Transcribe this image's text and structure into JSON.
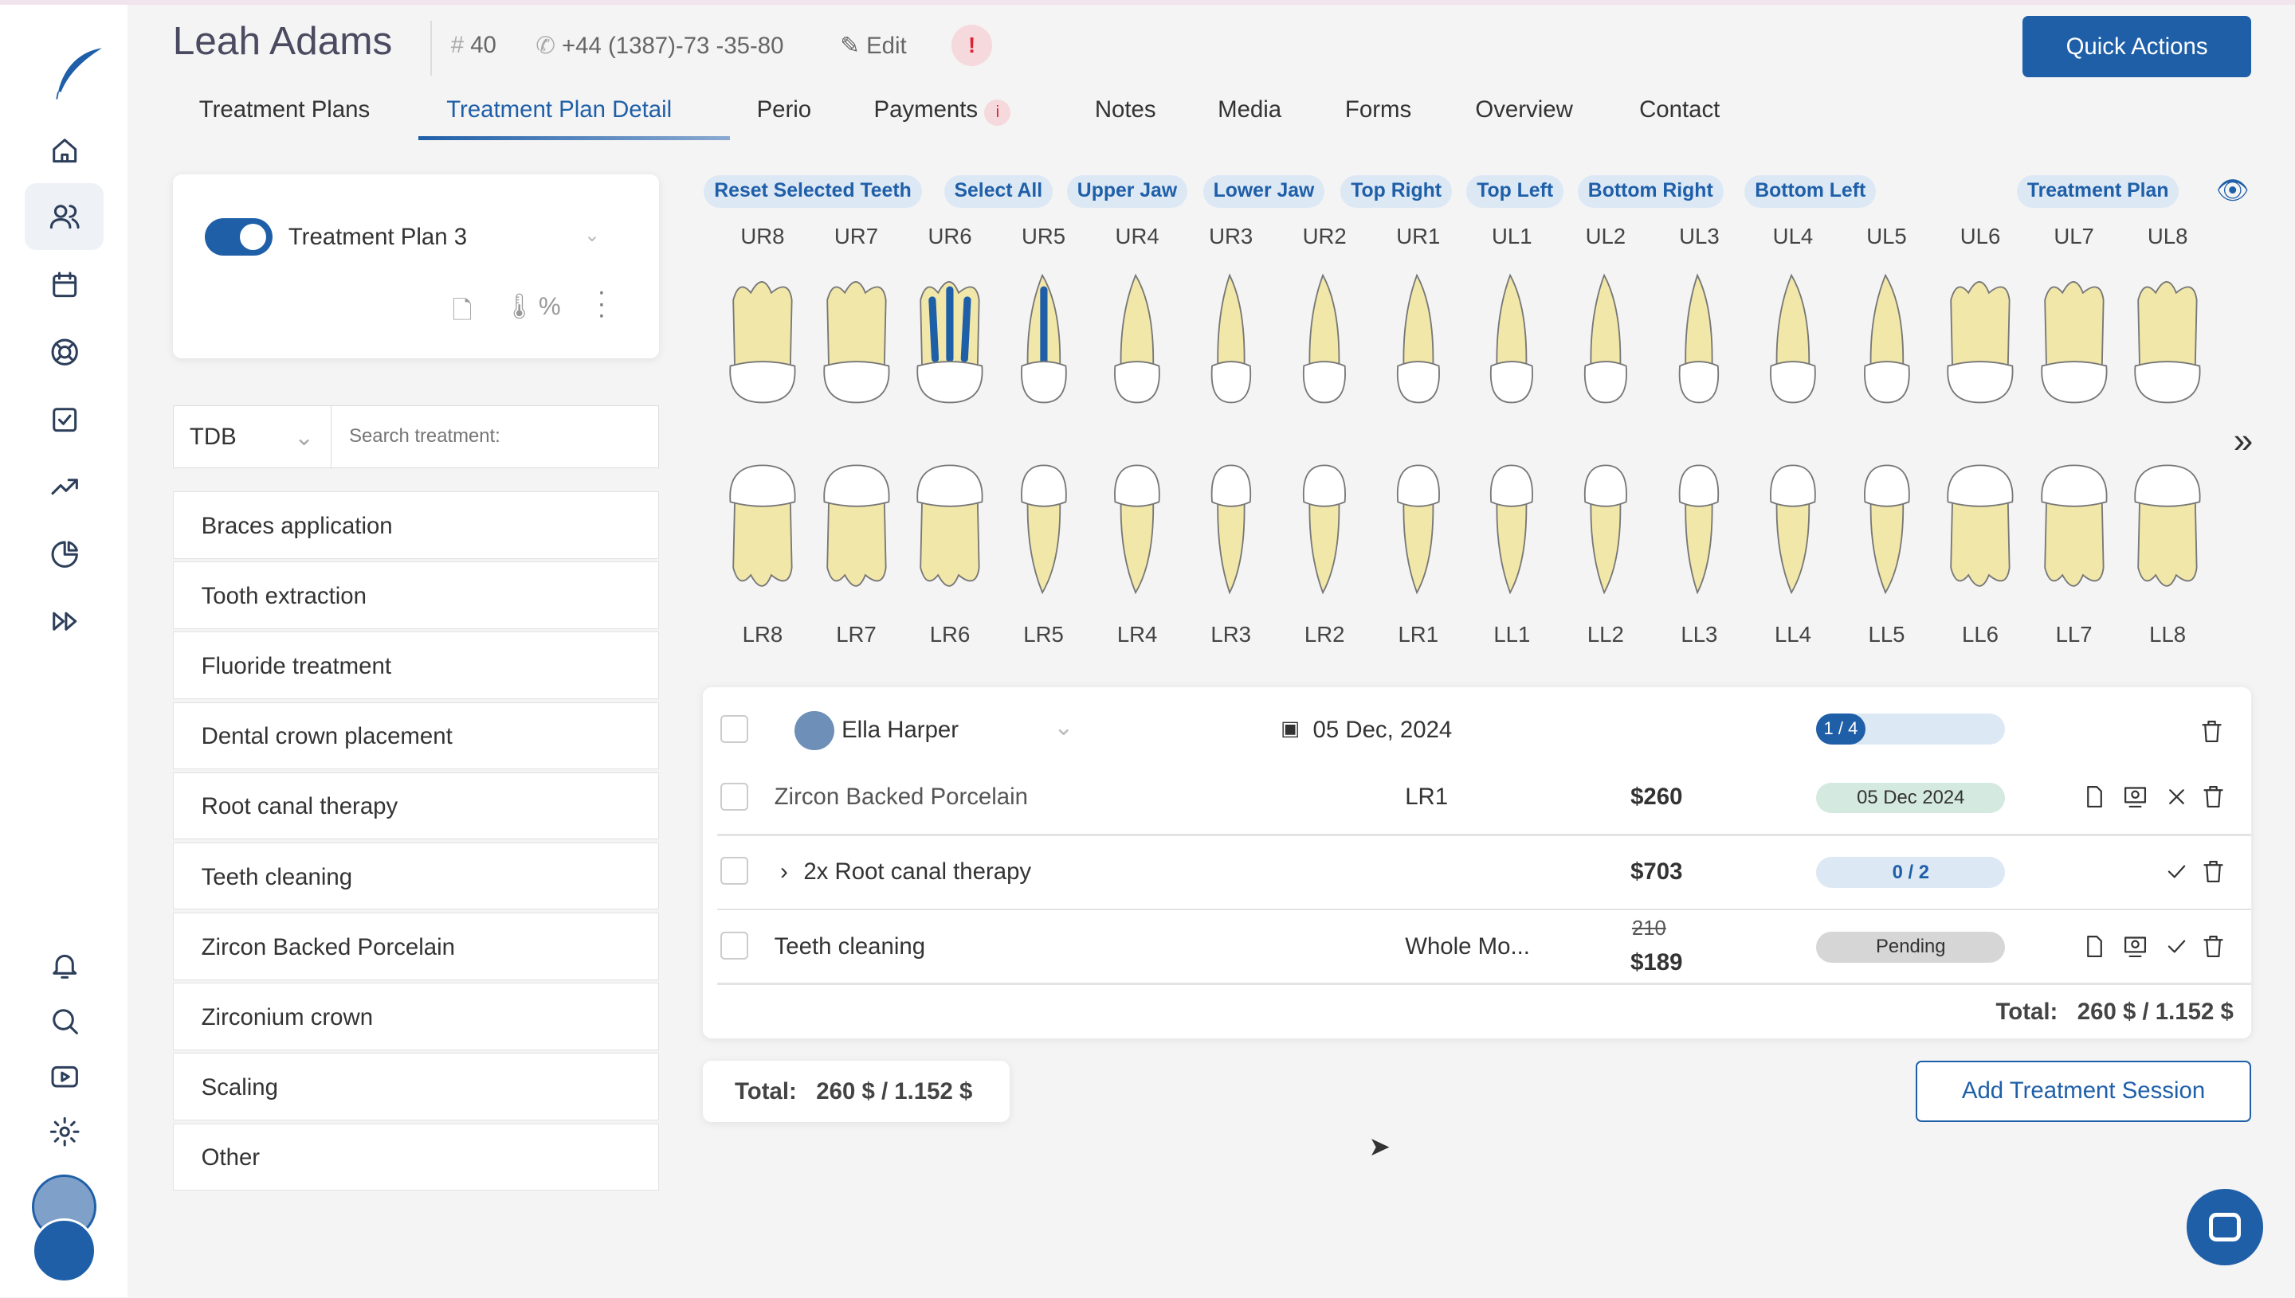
{
  "patient": {
    "name": "Leah Adams",
    "id": "40",
    "phone": "+44 (1387)-73 -35-80",
    "edit_label": "Edit"
  },
  "header": {
    "quick_actions": "Quick Actions"
  },
  "tabs": [
    {
      "label": "Treatment Plans"
    },
    {
      "label": "Treatment Plan Detail",
      "active": true
    },
    {
      "label": "Perio"
    },
    {
      "label": "Payments",
      "alert": true
    },
    {
      "label": "Notes"
    },
    {
      "label": "Media"
    },
    {
      "label": "Forms"
    },
    {
      "label": "Overview"
    },
    {
      "label": "Contact"
    }
  ],
  "plan_card": {
    "name": "Treatment Plan 3",
    "enabled": true
  },
  "filter": {
    "category": "TDB",
    "search_placeholder": "Search treatment:"
  },
  "treatments": [
    "Braces application",
    "Tooth extraction",
    "Fluoride treatment",
    "Dental crown placement",
    "Root canal therapy",
    "Teeth cleaning",
    "Zircon Backed Porcelain",
    "Zirconium crown",
    "Scaling",
    "Other"
  ],
  "chips": [
    "Reset Selected Teeth",
    "Select All",
    "Upper Jaw",
    "Lower Jaw",
    "Top Right",
    "Top Left",
    "Bottom Right",
    "Bottom Left"
  ],
  "chart_mode_chip": "Treatment Plan",
  "upper_teeth": [
    "UR8",
    "UR7",
    "UR6",
    "UR5",
    "UR4",
    "UR3",
    "UR2",
    "UR1",
    "UL1",
    "UL2",
    "UL3",
    "UL4",
    "UL5",
    "UL6",
    "UL7",
    "UL8"
  ],
  "lower_teeth": [
    "LR8",
    "LR7",
    "LR6",
    "LR5",
    "LR4",
    "LR3",
    "LR2",
    "LR1",
    "LL1",
    "LL2",
    "LL3",
    "LL4",
    "LL5",
    "LL6",
    "LL7",
    "LL8"
  ],
  "marked_teeth": [
    "UR6",
    "UR5"
  ],
  "colors": {
    "accent": "#1f5fa8",
    "root": "#f1e7a9",
    "canal": "#1f5fa8",
    "done_pill": "#d4e9e0",
    "pending_pill": "#d6d6d6",
    "progress_pill": "#dde8f5"
  },
  "session": {
    "doctor": "Ella Harper",
    "date": "05 Dec, 2024",
    "progress": "1 / 4",
    "progress_fraction": 0.25,
    "rows": [
      {
        "name": "Zircon Backed Porcelain",
        "tooth": "LR1",
        "price": "$260",
        "status": "05 Dec 2024"
      },
      {
        "name": "2x Root canal therapy",
        "tooth": "",
        "price": "$703",
        "status": "0 / 2"
      },
      {
        "name": "Teeth cleaning",
        "tooth": "Whole Mo...",
        "old_price": "210",
        "price": "$189",
        "status": "Pending"
      }
    ],
    "total_label": "Total:",
    "total_value": "260 $ / 1.152 $"
  },
  "footer": {
    "total_label": "Total:",
    "total_value": "260 $ / 1.152 $",
    "add_session": "Add Treatment Session"
  }
}
